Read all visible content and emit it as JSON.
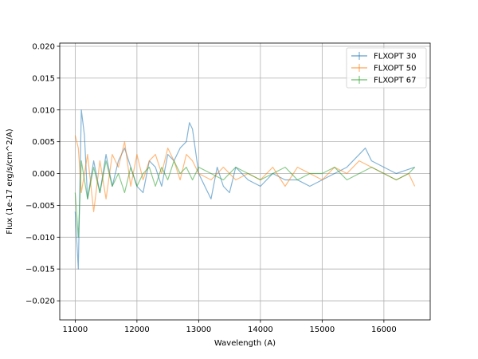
{
  "chart_data": {
    "type": "line",
    "title": "",
    "xlabel": "Wavelength (A)",
    "ylabel": "Flux (1e-17 erg/s/cm^2/A)",
    "xlim": [
      10750,
      16750
    ],
    "ylim": [
      -0.023,
      0.0205
    ],
    "grid": true,
    "legend_position": "top-right",
    "x_ticks": [
      11000,
      12000,
      13000,
      14000,
      15000,
      16000
    ],
    "x_tick_labels": [
      "11000",
      "12000",
      "13000",
      "14000",
      "15000",
      "16000"
    ],
    "y_ticks": [
      0.02,
      0.015,
      0.01,
      0.005,
      0.0,
      -0.005,
      -0.01,
      -0.015,
      -0.02
    ],
    "y_tick_labels": [
      "0.020",
      "0.015",
      "0.010",
      "0.005",
      "0.000",
      "−0.005",
      "−0.010",
      "−0.015",
      "−0.020"
    ],
    "series": [
      {
        "name": "FLXOPT 30",
        "color": "#1f77b4",
        "x": [
          11000,
          11050,
          11100,
          11150,
          11200,
          11300,
          11400,
          11500,
          11600,
          11700,
          11800,
          11900,
          12000,
          12100,
          12200,
          12300,
          12400,
          12500,
          12600,
          12700,
          12800,
          12850,
          12900,
          13000,
          13100,
          13200,
          13300,
          13400,
          13500,
          13600,
          13800,
          14000,
          14200,
          14400,
          14600,
          14800,
          15000,
          15200,
          15400,
          15600,
          15700,
          15800,
          16000,
          16200,
          16500
        ],
        "y": [
          -0.006,
          -0.015,
          0.01,
          0.006,
          -0.004,
          0.002,
          -0.003,
          0.003,
          -0.002,
          0.002,
          0.004,
          0.001,
          -0.002,
          -0.003,
          0.002,
          0.001,
          -0.002,
          0.003,
          0.002,
          0.004,
          0.005,
          0.008,
          0.007,
          0.0,
          -0.002,
          -0.004,
          0.001,
          -0.002,
          -0.003,
          0.001,
          -0.001,
          -0.002,
          0.0,
          -0.001,
          -0.001,
          -0.002,
          -0.001,
          0.0,
          0.001,
          0.003,
          0.004,
          0.002,
          0.001,
          0.0,
          0.001
        ]
      },
      {
        "name": "FLXOPT 50",
        "color": "#ff7f0e",
        "x": [
          11000,
          11050,
          11100,
          11200,
          11300,
          11400,
          11500,
          11600,
          11700,
          11800,
          11900,
          12000,
          12100,
          12200,
          12300,
          12400,
          12500,
          12600,
          12700,
          12800,
          12900,
          13000,
          13200,
          13400,
          13600,
          13800,
          14000,
          14200,
          14400,
          14600,
          14800,
          15000,
          15200,
          15400,
          15600,
          15800,
          16000,
          16200,
          16400,
          16500
        ],
        "y": [
          0.006,
          0.004,
          -0.003,
          0.003,
          -0.006,
          0.002,
          -0.004,
          0.003,
          0.001,
          0.005,
          -0.002,
          0.003,
          -0.001,
          0.002,
          0.003,
          0.0,
          0.004,
          0.002,
          -0.001,
          0.003,
          0.002,
          0.0,
          -0.001,
          0.001,
          -0.001,
          0.0,
          -0.001,
          0.001,
          -0.002,
          0.001,
          0.0,
          -0.001,
          0.001,
          0.0,
          0.002,
          0.001,
          0.0,
          -0.001,
          0.0,
          -0.002
        ]
      },
      {
        "name": "FLXOPT 67",
        "color": "#2ca02c",
        "x": [
          11000,
          11050,
          11100,
          11200,
          11300,
          11400,
          11500,
          11600,
          11700,
          11800,
          11900,
          12000,
          12100,
          12200,
          12300,
          12400,
          12500,
          12600,
          12700,
          12800,
          12900,
          13000,
          13200,
          13400,
          13600,
          13800,
          14000,
          14200,
          14400,
          14600,
          14800,
          15000,
          15200,
          15400,
          15600,
          15800,
          16000,
          16200,
          16400,
          16500
        ],
        "y": [
          -0.003,
          -0.01,
          0.002,
          -0.004,
          0.001,
          -0.003,
          0.002,
          -0.002,
          0.0,
          -0.003,
          0.001,
          -0.002,
          0.0,
          0.001,
          -0.002,
          0.001,
          -0.001,
          0.002,
          0.0,
          0.001,
          -0.001,
          0.001,
          0.0,
          -0.001,
          0.001,
          0.0,
          -0.001,
          0.0,
          0.001,
          -0.001,
          0.0,
          0.0,
          0.001,
          -0.001,
          0.0,
          0.001,
          0.0,
          -0.001,
          0.0,
          0.001
        ]
      }
    ]
  }
}
